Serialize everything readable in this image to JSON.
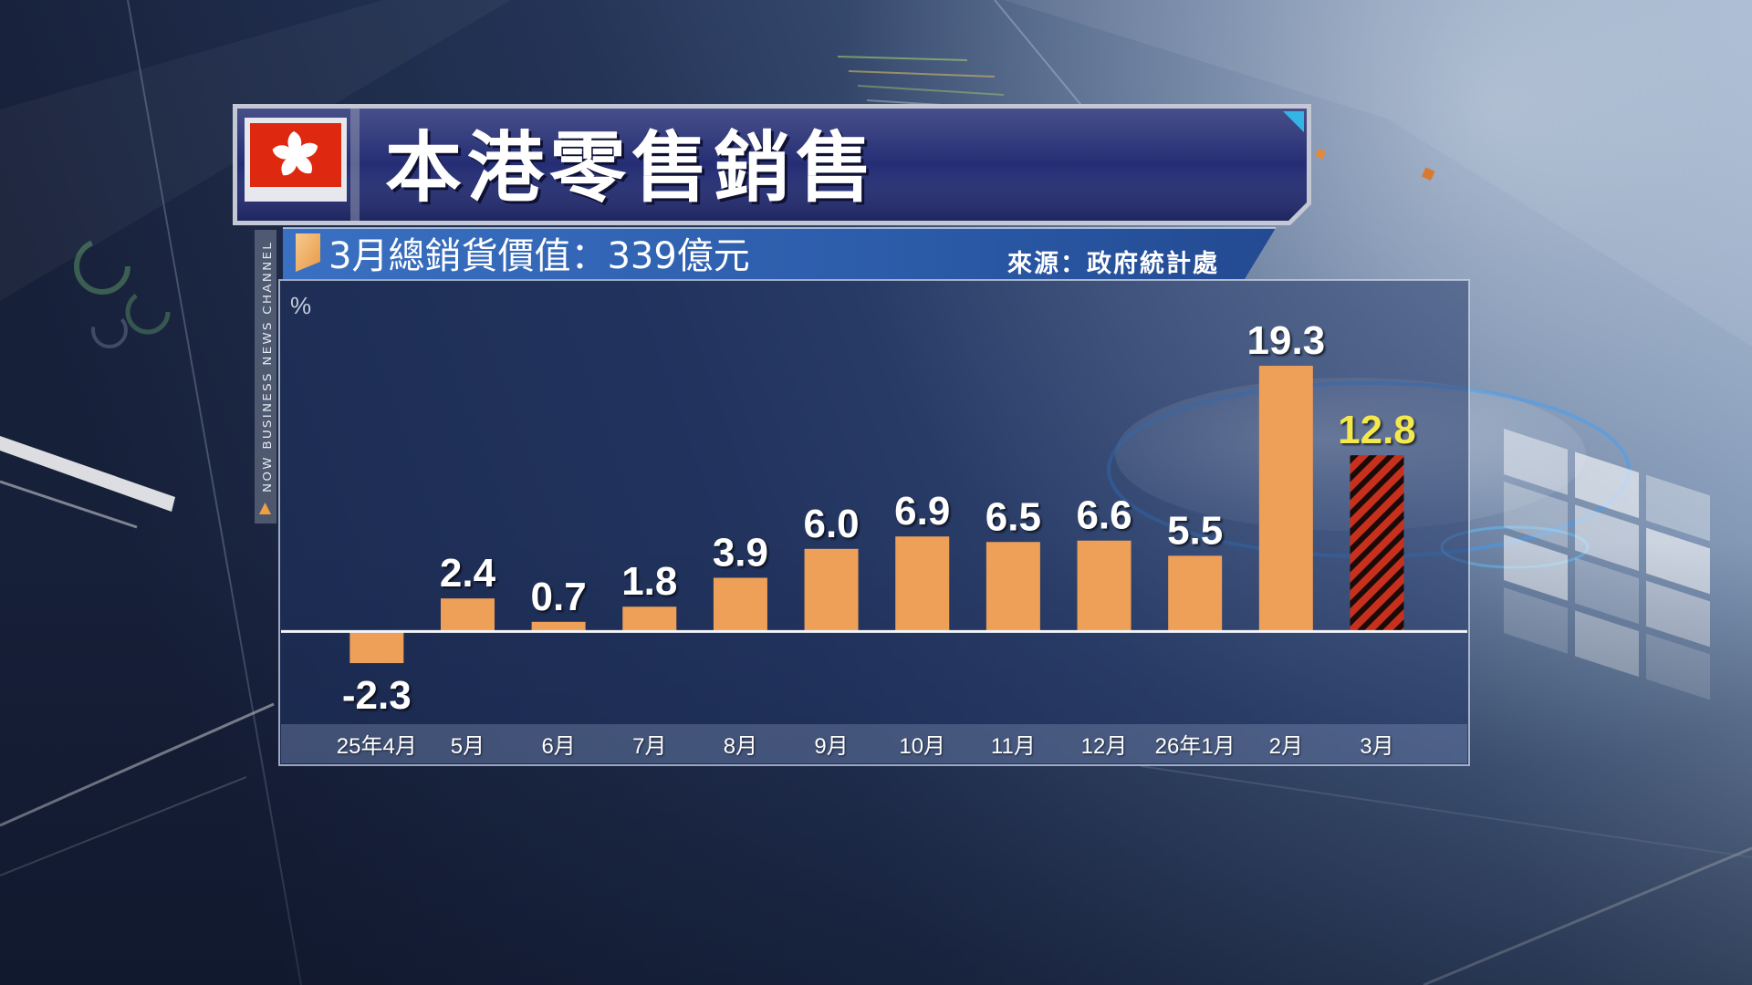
{
  "icons": {
    "flag": "hong-kong-flag-icon",
    "marker": "orange-tab-marker-icon",
    "branding_marker": "orange-triangle-icon"
  },
  "branding": {
    "channel_text": "NOW BUSINESS NEWS CHANNEL"
  },
  "colors": {
    "title_bg": "#252E74",
    "subheader_bg": "#2D5FAE",
    "bar": "#EE9F58",
    "highlight_bar": "#C8301E",
    "highlight_stripe": "#1B0B08",
    "label": "#FFFFFF",
    "highlight_label": "#F3E84C",
    "zero_line": "#F2F5FA",
    "flag_red": "#DE2910",
    "accent_orange": "#F0A040"
  },
  "chart_data": {
    "type": "bar",
    "title": "本港零售銷售",
    "subtitle": "3月總銷貨價值：339億元",
    "source": "來源：政府統計處",
    "ylabel": "%",
    "categories": [
      "25年4月",
      "5月",
      "6月",
      "7月",
      "8月",
      "9月",
      "10月",
      "11月",
      "12月",
      "26年1月",
      "2月",
      "3月"
    ],
    "values": [
      -2.3,
      2.4,
      0.7,
      1.8,
      3.9,
      6.0,
      6.9,
      6.5,
      6.6,
      5.5,
      19.3,
      12.8
    ],
    "value_labels": [
      "-2.3",
      "2.4",
      "0.7",
      "1.8",
      "3.9",
      "6.0",
      "6.9",
      "6.5",
      "6.6",
      "5.5",
      "19.3",
      "12.8"
    ],
    "highlighted": [
      false,
      false,
      false,
      false,
      false,
      false,
      false,
      false,
      false,
      false,
      false,
      true
    ],
    "ylim": [
      -6.7,
      25.2
    ],
    "grid": false
  }
}
